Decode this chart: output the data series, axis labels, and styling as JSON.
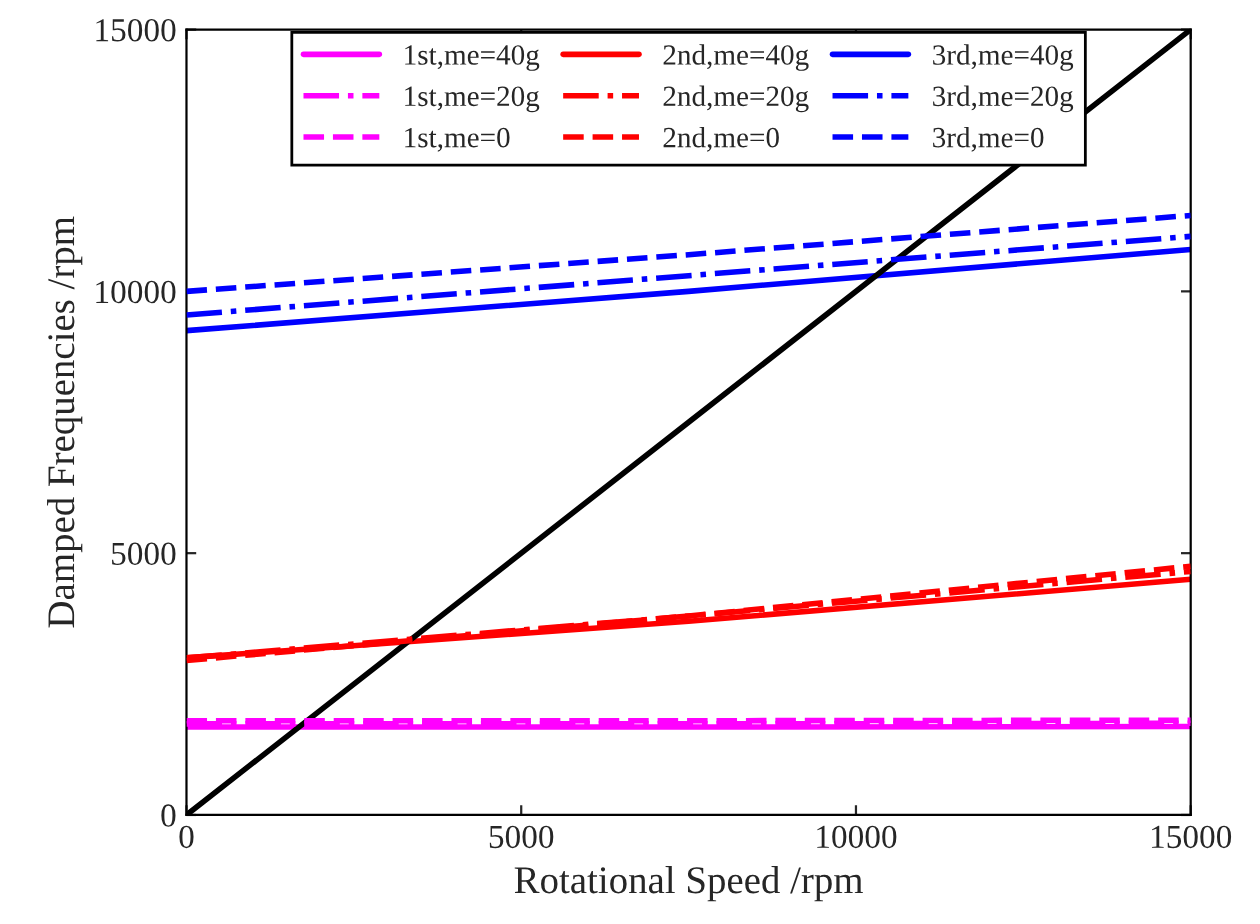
{
  "chart_data": {
    "type": "line",
    "xlabel": "Rotational Speed /rpm",
    "ylabel": "Damped Frequencies /rpm",
    "x": [
      0,
      7500,
      15000
    ],
    "xlim": [
      0,
      15000
    ],
    "ylim": [
      0,
      15000
    ],
    "xticks": [
      0,
      5000,
      10000,
      15000
    ],
    "yticks": [
      0,
      5000,
      10000,
      15000
    ],
    "grid": false,
    "legend": "top",
    "marker": "none",
    "series": [
      {
        "name": "1st,me=40g",
        "color": "#ff00ff",
        "line_style": "solid",
        "values": [
          1680,
          1680,
          1690
        ]
      },
      {
        "name": "1st,me=20g",
        "color": "#ff00ff",
        "line_style": "dashdot",
        "values": [
          1740,
          1740,
          1750
        ]
      },
      {
        "name": "1st,me=0",
        "color": "#ff00ff",
        "line_style": "dashed",
        "values": [
          1800,
          1800,
          1810
        ]
      },
      {
        "name": "2nd,me=40g",
        "color": "#ff0000",
        "line_style": "solid",
        "values": [
          3000,
          3700,
          4500
        ]
      },
      {
        "name": "2nd,me=20g",
        "color": "#ff0000",
        "line_style": "dashdot",
        "values": [
          3000,
          3800,
          4650
        ]
      },
      {
        "name": "2nd,me=0",
        "color": "#ff0000",
        "line_style": "dashed",
        "values": [
          2950,
          3800,
          4750
        ]
      },
      {
        "name": "3rd,me=40g",
        "color": "#0000ff",
        "line_style": "solid",
        "values": [
          9250,
          10000,
          10800
        ]
      },
      {
        "name": "3rd,me=20g",
        "color": "#0000ff",
        "line_style": "dashdot",
        "values": [
          9550,
          10300,
          11050
        ]
      },
      {
        "name": "3rd,me=0",
        "color": "#0000ff",
        "line_style": "dashed",
        "values": [
          10000,
          10700,
          11450
        ]
      },
      {
        "color": "#000000",
        "line_style": "solid",
        "values": [
          0,
          7500,
          15000
        ]
      }
    ]
  }
}
